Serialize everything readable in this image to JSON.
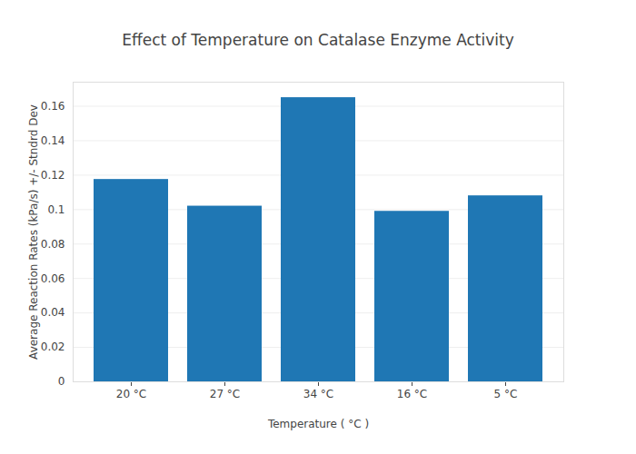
{
  "chart_data": {
    "type": "bar",
    "title": "Effect of Temperature on Catalase Enzyme Activity",
    "x_label": "Temperature ( °C )",
    "y_label": "Average Reaction Rates (kPa/s) +/- Stndrd Dev",
    "categories": [
      "20 °C",
      "27 °C",
      "34 °C",
      "16 °C",
      "5 °C"
    ],
    "values": [
      0.1175,
      0.102,
      0.165,
      0.099,
      0.108
    ],
    "color": "#1f77b4",
    "ylim": [
      0,
      0.174
    ],
    "yticks": [
      0,
      0.02,
      0.04,
      0.06,
      0.08,
      0.1,
      0.12,
      0.14,
      0.16
    ],
    "grid": true
  }
}
